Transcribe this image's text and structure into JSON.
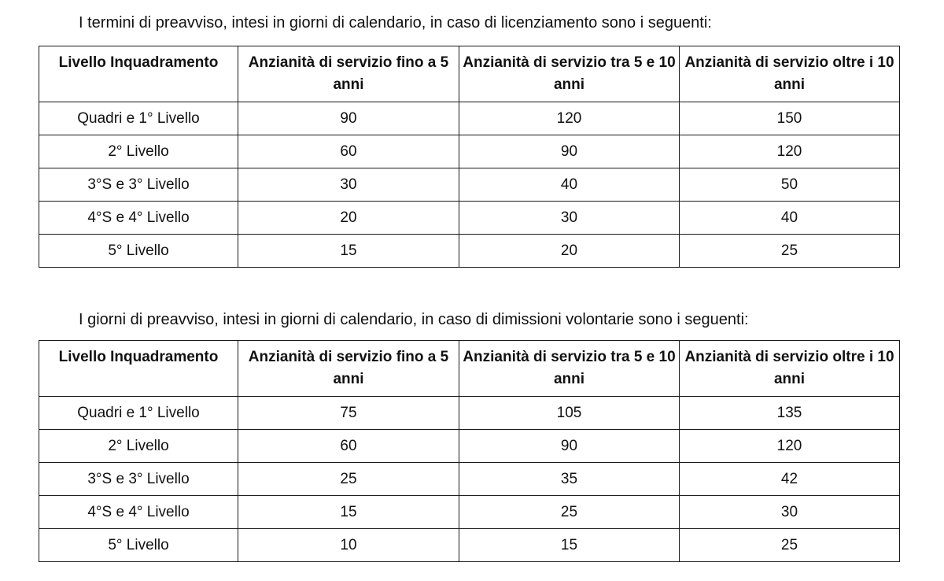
{
  "intro_1": "I termini di preavviso, intesi in giorni di calendario, in caso di licenziamento sono i seguenti:",
  "intro_2": "I giorni di preavviso, intesi in giorni di calendario, in caso di dimissioni volontarie sono i seguenti:",
  "headers": [
    "Livello Inquadramento",
    "Anzianità di servizio fino a 5 anni",
    "Anzianità di servizio tra 5 e 10 anni",
    "Anzianità di servizio oltre i 10 anni"
  ],
  "table_1": [
    [
      "Quadri e 1° Livello",
      "90",
      "120",
      "150"
    ],
    [
      "2° Livello",
      "60",
      "90",
      "120"
    ],
    [
      "3°S e 3° Livello",
      "30",
      "40",
      "50"
    ],
    [
      "4°S e 4° Livello",
      "20",
      "30",
      "40"
    ],
    [
      "5° Livello",
      "15",
      "20",
      "25"
    ]
  ],
  "table_2": [
    [
      "Quadri e 1° Livello",
      "75",
      "105",
      "135"
    ],
    [
      "2° Livello",
      "60",
      "90",
      "120"
    ],
    [
      "3°S e 3° Livello",
      "25",
      "35",
      "42"
    ],
    [
      "4°S e 4° Livello",
      "15",
      "25",
      "30"
    ],
    [
      "5° Livello",
      "10",
      "15",
      "25"
    ]
  ]
}
